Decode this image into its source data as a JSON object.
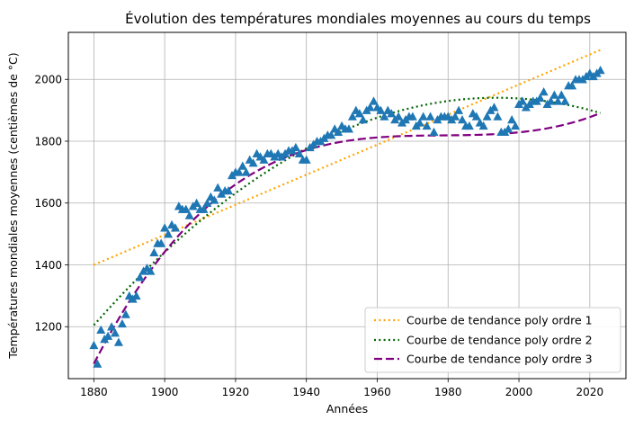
{
  "chart_data": {
    "type": "scatter",
    "title": "Évolution des températures mondiales moyennes au cours du temps",
    "xlabel": "Années",
    "ylabel": "Températures mondiales moyennes (centièmes de °C)",
    "xlim": [
      1872.8,
      2030.2
    ],
    "ylim": [
      1032,
      2152
    ],
    "xticks": [
      1880,
      1900,
      1920,
      1940,
      1960,
      1980,
      2000,
      2020
    ],
    "yticks": [
      1200,
      1400,
      1600,
      1800,
      2000
    ],
    "grid": true,
    "legend_position": "lower right",
    "colors": {
      "points": "#1f77b4",
      "trend1": "#ffa500",
      "trend2": "#006400",
      "trend3": "#800080",
      "grid": "#b0b0b0",
      "legend_border": "#cccccc"
    },
    "series": [
      {
        "marker": "triangle",
        "x": [
          1880,
          1881,
          1882,
          1883,
          1884,
          1885,
          1886,
          1887,
          1888,
          1889,
          1890,
          1891,
          1892,
          1893,
          1894,
          1895,
          1896,
          1897,
          1898,
          1899,
          1900,
          1901,
          1902,
          1903,
          1904,
          1905,
          1906,
          1907,
          1908,
          1909,
          1910,
          1911,
          1912,
          1913,
          1914,
          1915,
          1916,
          1917,
          1918,
          1919,
          1920,
          1921,
          1922,
          1923,
          1924,
          1925,
          1926,
          1927,
          1928,
          1929,
          1930,
          1931,
          1932,
          1933,
          1934,
          1935,
          1936,
          1937,
          1938,
          1939,
          1940,
          1941,
          1942,
          1943,
          1944,
          1945,
          1946,
          1947,
          1948,
          1949,
          1950,
          1951,
          1952,
          1953,
          1954,
          1955,
          1956,
          1957,
          1958,
          1959,
          1960,
          1961,
          1962,
          1963,
          1964,
          1965,
          1966,
          1967,
          1968,
          1969,
          1970,
          1971,
          1972,
          1973,
          1974,
          1975,
          1976,
          1977,
          1978,
          1979,
          1980,
          1981,
          1982,
          1983,
          1984,
          1985,
          1986,
          1987,
          1988,
          1989,
          1990,
          1991,
          1992,
          1993,
          1994,
          1995,
          1996,
          1997,
          1998,
          1999,
          2000,
          2001,
          2002,
          2003,
          2004,
          2005,
          2006,
          2007,
          2008,
          2009,
          2010,
          2011,
          2012,
          2013,
          2014,
          2015,
          2016,
          2017,
          2018,
          2019,
          2020,
          2021,
          2022,
          2023
        ],
        "y": [
          1140,
          1080,
          1190,
          1160,
          1170,
          1200,
          1180,
          1150,
          1210,
          1240,
          1300,
          1290,
          1300,
          1360,
          1380,
          1390,
          1380,
          1440,
          1470,
          1470,
          1520,
          1500,
          1530,
          1520,
          1590,
          1580,
          1580,
          1560,
          1590,
          1600,
          1580,
          1580,
          1600,
          1620,
          1610,
          1650,
          1630,
          1640,
          1640,
          1690,
          1700,
          1700,
          1720,
          1700,
          1740,
          1730,
          1760,
          1750,
          1740,
          1760,
          1760,
          1750,
          1760,
          1750,
          1760,
          1770,
          1770,
          1780,
          1760,
          1740,
          1740,
          1780,
          1790,
          1800,
          1800,
          1810,
          1820,
          1820,
          1840,
          1830,
          1850,
          1840,
          1840,
          1880,
          1900,
          1890,
          1870,
          1900,
          1910,
          1930,
          1910,
          1900,
          1880,
          1900,
          1890,
          1870,
          1880,
          1860,
          1870,
          1880,
          1880,
          1850,
          1860,
          1880,
          1850,
          1880,
          1830,
          1870,
          1880,
          1880,
          1880,
          1870,
          1880,
          1900,
          1870,
          1850,
          1850,
          1890,
          1880,
          1860,
          1850,
          1880,
          1900,
          1910,
          1880,
          1830,
          1830,
          1840,
          1870,
          1850,
          1920,
          1930,
          1910,
          1920,
          1930,
          1930,
          1940,
          1960,
          1920,
          1930,
          1950,
          1930,
          1950,
          1930,
          1980,
          1980,
          2000,
          2000,
          2000,
          2010,
          2020,
          2010,
          2020,
          2030
        ]
      }
    ],
    "trend_lines": [
      {
        "name": "Courbe de tendance poly ordre 1",
        "style": "dotted",
        "coeffs": [
          1400,
          4.86
        ]
      },
      {
        "name": "Courbe de tendance poly ordre 2",
        "style": "dotted",
        "coeffs": [
          1205,
          12.95,
          -0.057
        ]
      },
      {
        "name": "Courbe de tendance poly ordre 3",
        "style": "dashed",
        "coeffs": [
          1080,
          22.3,
          -0.2254,
          0.000763
        ]
      }
    ]
  }
}
